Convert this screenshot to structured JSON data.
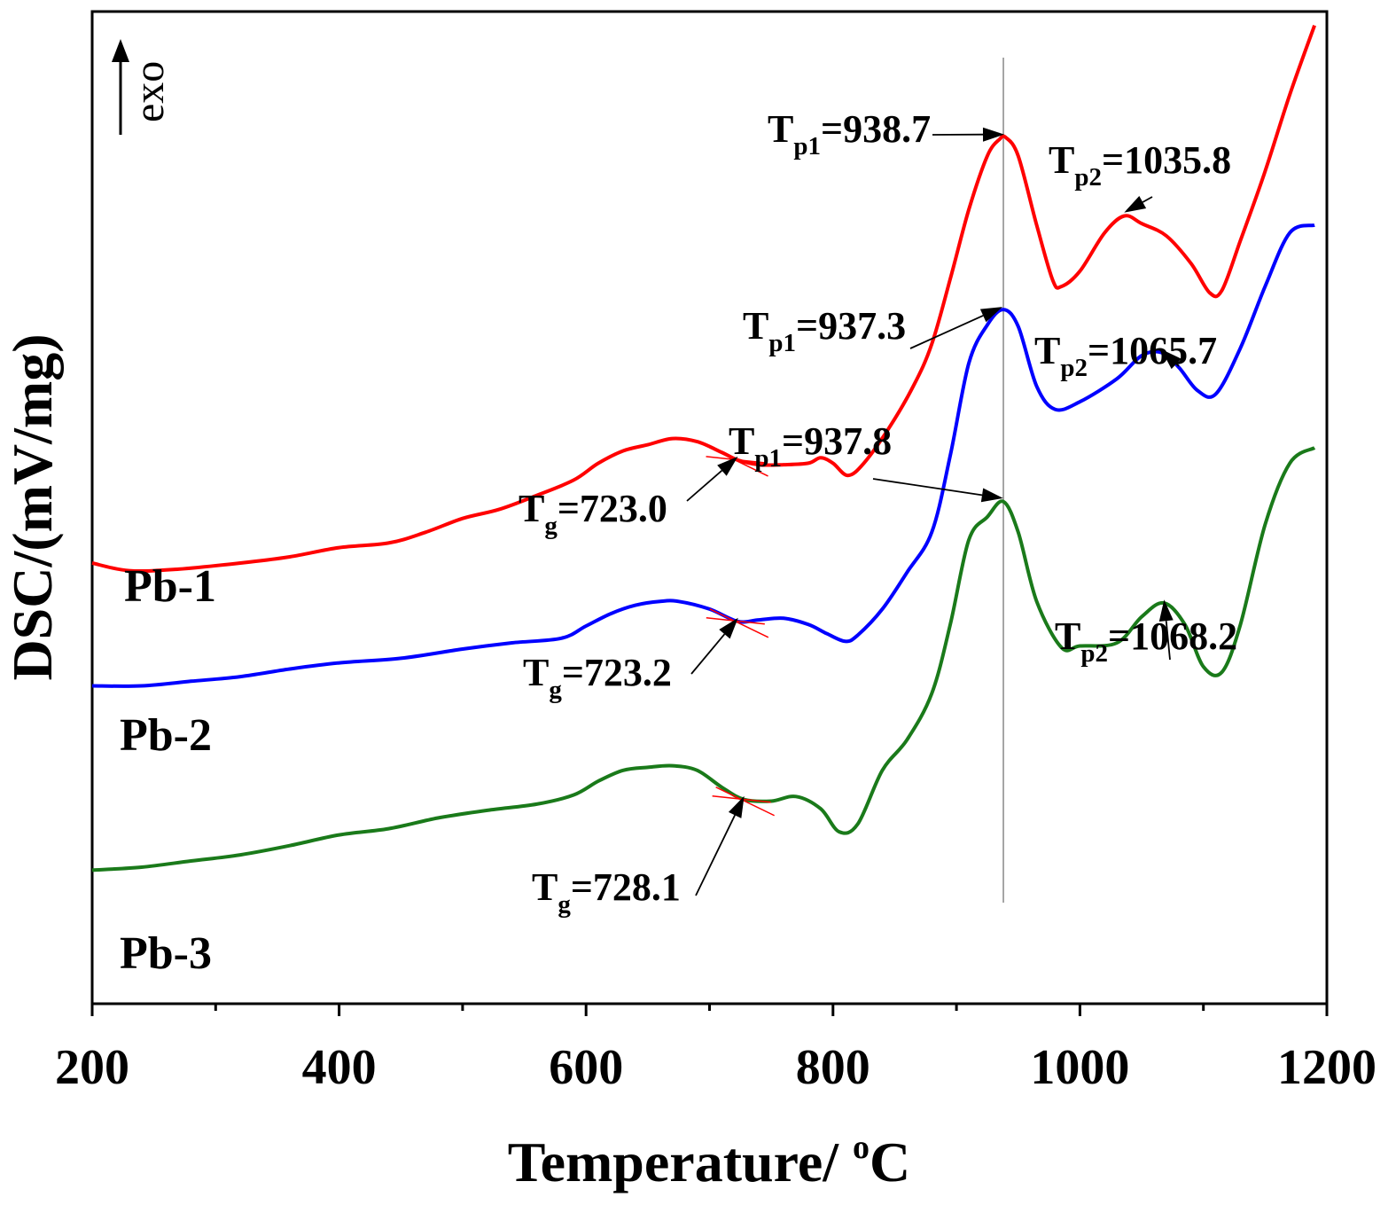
{
  "chart_data": {
    "type": "line",
    "xlabel_main": "Temperature/ ",
    "xlabel_sup": "o",
    "xlabel_tail": "C",
    "ylabel": "DSC/(mV/mg)",
    "xlim": [
      200,
      1200
    ],
    "x_ticks": [
      200,
      400,
      600,
      800,
      1000,
      1200
    ],
    "y_ticks": [],
    "grid": false,
    "direction_label": "exo",
    "reference_line_x": 938,
    "series": [
      {
        "name": "Pb-1",
        "color": "#ff0000",
        "points": [
          [
            200,
            0.56
          ],
          [
            230,
            0.55
          ],
          [
            270,
            0.552
          ],
          [
            320,
            0.56
          ],
          [
            360,
            0.568
          ],
          [
            400,
            0.58
          ],
          [
            440,
            0.586
          ],
          [
            470,
            0.6
          ],
          [
            500,
            0.618
          ],
          [
            530,
            0.63
          ],
          [
            560,
            0.648
          ],
          [
            590,
            0.668
          ],
          [
            610,
            0.69
          ],
          [
            630,
            0.706
          ],
          [
            650,
            0.714
          ],
          [
            670,
            0.722
          ],
          [
            690,
            0.718
          ],
          [
            710,
            0.704
          ],
          [
            723,
            0.694
          ],
          [
            740,
            0.688
          ],
          [
            760,
            0.688
          ],
          [
            780,
            0.69
          ],
          [
            790,
            0.697
          ],
          [
            800,
            0.69
          ],
          [
            812,
            0.674
          ],
          [
            825,
            0.69
          ],
          [
            845,
            0.735
          ],
          [
            865,
            0.79
          ],
          [
            880,
            0.845
          ],
          [
            895,
            0.93
          ],
          [
            910,
            1.02
          ],
          [
            925,
            1.09
          ],
          [
            935,
            1.112
          ],
          [
            940,
            1.114
          ],
          [
            950,
            1.09
          ],
          [
            965,
            1.0
          ],
          [
            978,
            0.928
          ],
          [
            985,
            0.92
          ],
          [
            1000,
            0.94
          ],
          [
            1020,
            0.99
          ],
          [
            1036,
            1.012
          ],
          [
            1050,
            1.002
          ],
          [
            1070,
            0.986
          ],
          [
            1090,
            0.95
          ],
          [
            1105,
            0.912
          ],
          [
            1115,
            0.915
          ],
          [
            1130,
            0.98
          ],
          [
            1150,
            1.07
          ],
          [
            1170,
            1.17
          ],
          [
            1190,
            1.26
          ]
        ]
      },
      {
        "name": "Pb-2",
        "color": "#0000ff",
        "points": [
          [
            200,
            0.4
          ],
          [
            240,
            0.4
          ],
          [
            280,
            0.406
          ],
          [
            320,
            0.412
          ],
          [
            360,
            0.422
          ],
          [
            400,
            0.43
          ],
          [
            450,
            0.436
          ],
          [
            500,
            0.448
          ],
          [
            540,
            0.456
          ],
          [
            580,
            0.462
          ],
          [
            600,
            0.478
          ],
          [
            620,
            0.494
          ],
          [
            640,
            0.505
          ],
          [
            660,
            0.51
          ],
          [
            675,
            0.51
          ],
          [
            700,
            0.5
          ],
          [
            723,
            0.484
          ],
          [
            740,
            0.486
          ],
          [
            760,
            0.488
          ],
          [
            780,
            0.48
          ],
          [
            795,
            0.468
          ],
          [
            810,
            0.458
          ],
          [
            820,
            0.466
          ],
          [
            840,
            0.5
          ],
          [
            860,
            0.548
          ],
          [
            880,
            0.6
          ],
          [
            895,
            0.7
          ],
          [
            910,
            0.82
          ],
          [
            925,
            0.87
          ],
          [
            938,
            0.89
          ],
          [
            950,
            0.868
          ],
          [
            965,
            0.79
          ],
          [
            980,
            0.76
          ],
          [
            1000,
            0.77
          ],
          [
            1030,
            0.8
          ],
          [
            1050,
            0.83
          ],
          [
            1066,
            0.834
          ],
          [
            1080,
            0.815
          ],
          [
            1095,
            0.785
          ],
          [
            1110,
            0.78
          ],
          [
            1130,
            0.84
          ],
          [
            1150,
            0.92
          ],
          [
            1170,
            0.99
          ],
          [
            1190,
            1.0
          ]
        ]
      },
      {
        "name": "Pb-3",
        "color": "#1a7a1a",
        "points": [
          [
            200,
            0.16
          ],
          [
            240,
            0.164
          ],
          [
            280,
            0.172
          ],
          [
            320,
            0.18
          ],
          [
            360,
            0.192
          ],
          [
            400,
            0.206
          ],
          [
            440,
            0.214
          ],
          [
            480,
            0.228
          ],
          [
            520,
            0.238
          ],
          [
            560,
            0.246
          ],
          [
            590,
            0.258
          ],
          [
            610,
            0.276
          ],
          [
            630,
            0.29
          ],
          [
            650,
            0.294
          ],
          [
            670,
            0.296
          ],
          [
            690,
            0.29
          ],
          [
            710,
            0.268
          ],
          [
            728,
            0.252
          ],
          [
            750,
            0.25
          ],
          [
            770,
            0.256
          ],
          [
            790,
            0.24
          ],
          [
            805,
            0.21
          ],
          [
            820,
            0.22
          ],
          [
            840,
            0.29
          ],
          [
            860,
            0.33
          ],
          [
            880,
            0.39
          ],
          [
            895,
            0.48
          ],
          [
            910,
            0.59
          ],
          [
            925,
            0.62
          ],
          [
            938,
            0.64
          ],
          [
            950,
            0.6
          ],
          [
            965,
            0.51
          ],
          [
            985,
            0.45
          ],
          [
            1000,
            0.452
          ],
          [
            1030,
            0.456
          ],
          [
            1050,
            0.49
          ],
          [
            1068,
            0.508
          ],
          [
            1085,
            0.48
          ],
          [
            1100,
            0.425
          ],
          [
            1115,
            0.418
          ],
          [
            1130,
            0.48
          ],
          [
            1150,
            0.61
          ],
          [
            1170,
            0.69
          ],
          [
            1190,
            0.71
          ]
        ]
      }
    ],
    "annotations": [
      {
        "main": "T",
        "sub": "p1",
        "rest": "=938.7",
        "series": "Pb-1"
      },
      {
        "main": "T",
        "sub": "p2",
        "rest": "=1035.8",
        "series": "Pb-1"
      },
      {
        "main": "T",
        "sub": "p1",
        "rest": "=937.3",
        "series": "Pb-2"
      },
      {
        "main": "T",
        "sub": "p2",
        "rest": "=1065.7",
        "series": "Pb-2"
      },
      {
        "main": "T",
        "sub": "p1",
        "rest": "=937.8",
        "series": "Pb-3"
      },
      {
        "main": "T",
        "sub": "p2",
        "rest": "=1068.2",
        "series": "Pb-3"
      },
      {
        "main": "T",
        "sub": "g",
        "rest": "=723.0",
        "series": "Pb-1"
      },
      {
        "main": "T",
        "sub": "g",
        "rest": "=723.2",
        "series": "Pb-2"
      },
      {
        "main": "T",
        "sub": "g",
        "rest": "=728.1",
        "series": "Pb-3"
      }
    ]
  }
}
